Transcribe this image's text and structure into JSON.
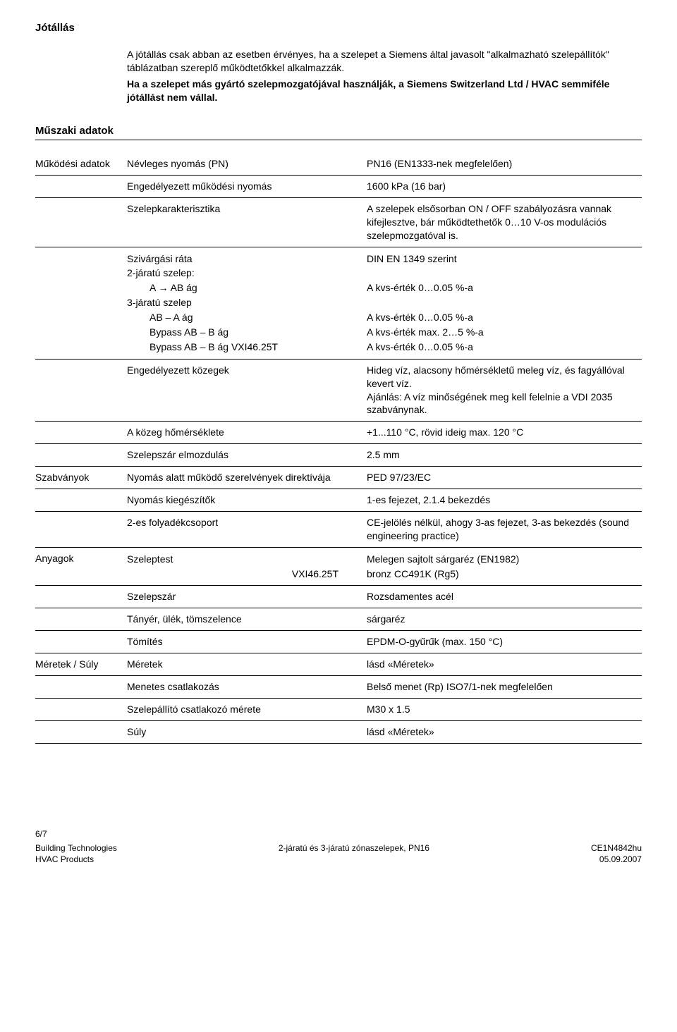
{
  "warranty": {
    "heading": "Jótállás",
    "p1": "A jótállás csak abban az esetben érvényes, ha a szelepet a Siemens által javasolt \"alkalmazható szelepállítók\" táblázatban szereplő működtetőkkel alkalmazzák.",
    "p2": "Ha a szelepet más gyártó szelepmozgatójával használják, a Siemens Switzerland Ltd / HVAC semmiféle jótállást nem vállal."
  },
  "techHeading": "Műszaki adatok",
  "groups": {
    "operating": "Működési adatok",
    "standards": "Szabványok",
    "materials": "Anyagok",
    "dims": "Méretek / Súly"
  },
  "rows": {
    "pn_l": "Névleges nyomás (PN)",
    "pn_r": "PN16 (EN1333-nek megfelelően)",
    "opn_l": "Engedélyezett működési nyomás",
    "opn_r": "1600 kPa (16 bar)",
    "char_l": "Szelepkarakterisztika",
    "char_r": "A szelepek elsősorban ON / OFF szabályozásra vannak kifejlesztve, bár működtethetők 0…10 V-os modulációs szelepmozgatóval is.",
    "leak_l": "Szivárgási ráta",
    "leak_r": "DIN EN 1349 szerint",
    "two_l": "2-járatú szelep:",
    "two_a_l": "A → AB ág",
    "two_a_r": "A kvs-érték 0…0.05 %-a",
    "three_l": "3-járatú szelep",
    "three_a_l": "AB – A ág",
    "three_a_r": "A kvs-érték 0…0.05 %-a",
    "three_b_l": "Bypass AB – B ág",
    "three_b_r": "A kvs-érték max. 2…5 %-a",
    "three_c_l": "Bypass AB – B ág  VXI46.25T",
    "three_c_r": "A kvs-érték 0…0.05 %-a",
    "media_l": "Engedélyezett közegek",
    "media_r": "Hideg víz, alacsony hőmérsékletű meleg víz, és fagyállóval kevert víz.\nAjánlás: A víz minőségének meg kell felelnie a VDI 2035 szabványnak.",
    "temp_l": "A közeg hőmérséklete",
    "temp_r": "+1...110 °C, rövid ideig max. 120 °C",
    "stroke_l": "Szelepszár elmozdulás",
    "stroke_r": "2.5 mm",
    "ped_l": "Nyomás alatt működő szerelvények direktívája",
    "ped_r": "PED 97/23/EC",
    "press_l": "Nyomás kiegészítők",
    "press_r": "1-es fejezet, 2.1.4 bekezdés",
    "fluid_l": "2-es folyadékcsoport",
    "fluid_r": "CE-jelölés nélkül, ahogy 3-as fejezet, 3-as bekezdés (sound engineering practice)",
    "body_l": "Szeleptest",
    "body_r": "Melegen sajtolt sárgaréz (EN1982)",
    "body2_l": "VXI46.25T",
    "body2_r": "bronz CC491K (Rg5)",
    "stem_l": "Szelepszár",
    "stem_r": "Rozsdamentes acél",
    "plug_l": "Tányér, ülék, tömszelence",
    "plug_r": "sárgaréz",
    "seal_l": "Tömítés",
    "seal_r": "EPDM-O-gyűrűk (max. 150 °C)",
    "dim_l": "Méretek",
    "dim_r": "lásd «Méretek»",
    "thread_l": "Menetes csatlakozás",
    "thread_r": "Belső menet (Rp) ISO7/1-nek megfelelően",
    "act_l": "Szelepállító csatlakozó mérete",
    "act_r": "M30 x 1.5",
    "weight_l": "Súly",
    "weight_r": "lásd «Méretek»"
  },
  "footer": {
    "page": "6/7",
    "left1": "Building Technologies",
    "center1": "2-járatú és 3-járatú zónaszelepek, PN16",
    "right1": "CE1N4842hu",
    "left2": "HVAC Products",
    "right2": "05.09.2007"
  }
}
